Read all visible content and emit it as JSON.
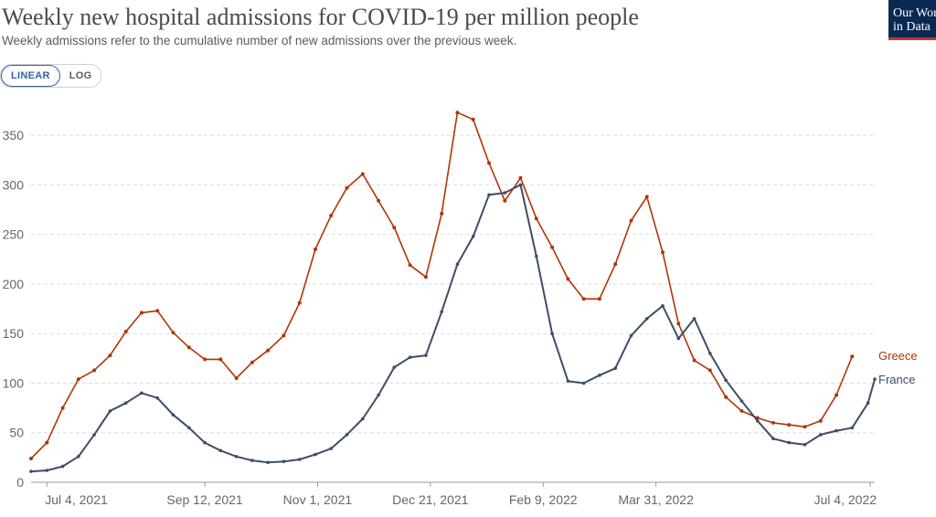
{
  "header": {
    "title": "Weekly new hospital admissions for COVID-19 per million people",
    "subtitle": "Weekly admissions refer to the cumulative number of new admissions over the previous week.",
    "logo_line1": "Our World",
    "logo_line2": "in Data"
  },
  "controls": {
    "linear_label": "LINEAR",
    "log_label": "LOG",
    "selected": "LINEAR"
  },
  "colors": {
    "greece": "#b13507",
    "france": "#3c4e66",
    "grid": "#dddddd",
    "accent": "#3360a9"
  },
  "chart_data": {
    "type": "line",
    "title": "Weekly new hospital admissions for COVID-19 per million people",
    "subtitle": "Weekly admissions refer to the cumulative number of new admissions over the previous week.",
    "xlabel": "",
    "ylabel": "",
    "x_ticks": [
      "Jul 4, 2021",
      "Sep 12, 2021",
      "Nov 1, 2021",
      "Dec 21, 2021",
      "Feb 9, 2022",
      "Mar 31, 2022",
      "Jul 4, 2022"
    ],
    "y_ticks": [
      0,
      50,
      100,
      150,
      200,
      250,
      300,
      350
    ],
    "ylim": [
      0,
      375
    ],
    "grid": "horizontal dashed",
    "legend": "line-end labels (right)",
    "series": [
      {
        "name": "Greece",
        "x": [
          "2021-06-27",
          "2021-07-04",
          "2021-07-11",
          "2021-07-18",
          "2021-07-25",
          "2021-08-01",
          "2021-08-08",
          "2021-08-15",
          "2021-08-22",
          "2021-08-29",
          "2021-09-05",
          "2021-09-12",
          "2021-09-19",
          "2021-09-26",
          "2021-10-03",
          "2021-10-10",
          "2021-10-17",
          "2021-10-24",
          "2021-10-31",
          "2021-11-07",
          "2021-11-14",
          "2021-11-21",
          "2021-11-28",
          "2021-12-05",
          "2021-12-12",
          "2021-12-19",
          "2021-12-26",
          "2022-01-02",
          "2022-01-09",
          "2022-01-16",
          "2022-01-23",
          "2022-01-30",
          "2022-02-06",
          "2022-02-13",
          "2022-02-20",
          "2022-02-27",
          "2022-03-06",
          "2022-03-13",
          "2022-03-20",
          "2022-03-27",
          "2022-04-03",
          "2022-04-10",
          "2022-04-17",
          "2022-04-24",
          "2022-05-01",
          "2022-05-08",
          "2022-05-15",
          "2022-05-22",
          "2022-05-29",
          "2022-06-05",
          "2022-06-12",
          "2022-06-19",
          "2022-06-26"
        ],
        "y": [
          24,
          40,
          75,
          104,
          113,
          128,
          152,
          171,
          173,
          151,
          136,
          124,
          124,
          105,
          121,
          133,
          148,
          181,
          235,
          269,
          297,
          311,
          284,
          257,
          219,
          207,
          271,
          373,
          366,
          322,
          284,
          307,
          266,
          237,
          205,
          185,
          185,
          220,
          264,
          288,
          232,
          160,
          123,
          113,
          86,
          72,
          65,
          60,
          58,
          56,
          62,
          88,
          127
        ]
      },
      {
        "name": "France",
        "x": [
          "2021-06-27",
          "2021-07-04",
          "2021-07-11",
          "2021-07-18",
          "2021-07-25",
          "2021-08-01",
          "2021-08-08",
          "2021-08-15",
          "2021-08-22",
          "2021-08-29",
          "2021-09-05",
          "2021-09-12",
          "2021-09-19",
          "2021-09-26",
          "2021-10-03",
          "2021-10-10",
          "2021-10-17",
          "2021-10-24",
          "2021-10-31",
          "2021-11-07",
          "2021-11-14",
          "2021-11-21",
          "2021-11-28",
          "2021-12-05",
          "2021-12-12",
          "2021-12-19",
          "2021-12-26",
          "2022-01-02",
          "2022-01-09",
          "2022-01-16",
          "2022-01-23",
          "2022-01-30",
          "2022-02-06",
          "2022-02-13",
          "2022-02-20",
          "2022-02-27",
          "2022-03-06",
          "2022-03-13",
          "2022-03-20",
          "2022-03-27",
          "2022-04-03",
          "2022-04-10",
          "2022-04-17",
          "2022-04-24",
          "2022-05-01",
          "2022-05-08",
          "2022-05-15",
          "2022-05-22",
          "2022-05-29",
          "2022-06-05",
          "2022-06-12",
          "2022-06-19",
          "2022-06-26",
          "2022-07-03",
          "2022-07-06"
        ],
        "y": [
          11,
          12,
          16,
          26,
          48,
          72,
          80,
          90,
          85,
          68,
          55,
          40,
          32,
          26,
          22,
          20,
          21,
          23,
          28,
          34,
          48,
          64,
          88,
          116,
          126,
          128,
          172,
          220,
          248,
          290,
          292,
          300,
          228,
          150,
          102,
          100,
          108,
          115,
          148,
          165,
          178,
          145,
          165,
          130,
          103,
          82,
          62,
          44,
          40,
          38,
          48,
          52,
          55,
          80,
          104
        ]
      }
    ]
  }
}
